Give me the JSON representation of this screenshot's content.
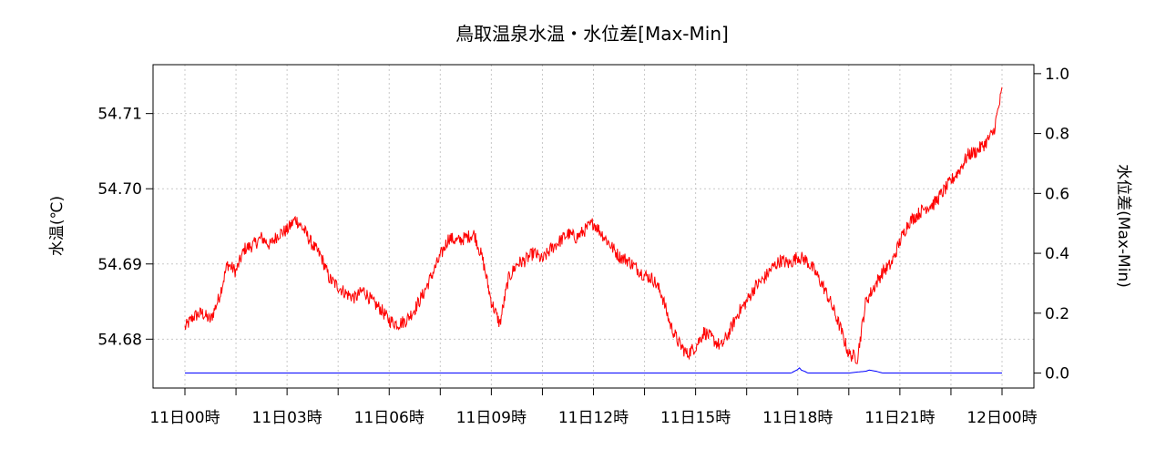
{
  "chart_data": {
    "type": "line",
    "title": "鳥取温泉水温・水位差[Max-Min]",
    "ylabel_left": "水温(℃)",
    "ylabel_right": "水位差(Max-Min)",
    "x_ticks": [
      "11日00時",
      "11日03時",
      "11日06時",
      "11日09時",
      "11日12時",
      "11日15時",
      "11日18時",
      "11日21時",
      "12日00時"
    ],
    "x_range_hours": [
      0,
      24
    ],
    "y_left_ticks": [
      "54.68",
      "54.69",
      "54.70",
      "54.71"
    ],
    "y_left_range": [
      54.6735,
      54.7165
    ],
    "y_right_ticks": [
      "0.0",
      "0.2",
      "0.4",
      "0.6",
      "0.8",
      "1.0"
    ],
    "y_right_range": [
      -0.05,
      1.03
    ],
    "grid": true,
    "colors": {
      "temperature": "#ff0000",
      "level_diff": "#0000ff",
      "grid": "#c8c8c8"
    },
    "series": [
      {
        "axis": "left",
        "color": "#ff0000",
        "x": [
          0,
          0.25,
          0.5,
          0.75,
          1.0,
          1.25,
          1.5,
          1.75,
          2.0,
          2.25,
          2.5,
          2.75,
          3.0,
          3.25,
          3.5,
          3.75,
          4.0,
          4.25,
          4.5,
          4.75,
          5.0,
          5.25,
          5.5,
          5.75,
          6.0,
          6.25,
          6.5,
          6.75,
          7.0,
          7.25,
          7.5,
          7.75,
          8.0,
          8.25,
          8.5,
          8.75,
          9.0,
          9.25,
          9.5,
          9.75,
          10.0,
          10.25,
          10.5,
          10.75,
          11.0,
          11.25,
          11.5,
          11.75,
          12.0,
          12.25,
          12.5,
          12.75,
          13.0,
          13.25,
          13.5,
          13.75,
          14.0,
          14.25,
          14.5,
          14.75,
          15.0,
          15.25,
          15.5,
          15.75,
          16.0,
          16.25,
          16.5,
          16.75,
          17.0,
          17.25,
          17.5,
          17.75,
          18.0,
          18.25,
          18.5,
          18.75,
          19.0,
          19.25,
          19.5,
          19.75,
          20.0,
          20.25,
          20.5,
          20.75,
          21.0,
          21.25,
          21.5,
          21.75,
          22.0,
          22.25,
          22.5,
          22.75,
          23.0,
          23.25,
          23.5,
          23.75,
          24.0
        ],
        "values": [
          54.6815,
          54.683,
          54.6835,
          54.6825,
          54.6855,
          54.69,
          54.689,
          54.692,
          54.6925,
          54.6935,
          54.6925,
          54.694,
          54.6945,
          54.696,
          54.6945,
          54.6925,
          54.691,
          54.688,
          54.687,
          54.686,
          54.6855,
          54.6865,
          54.685,
          54.684,
          54.6825,
          54.682,
          54.6825,
          54.684,
          54.686,
          54.6885,
          54.691,
          54.6935,
          54.693,
          54.6935,
          54.694,
          54.6905,
          54.685,
          54.682,
          54.688,
          54.69,
          54.6905,
          54.6915,
          54.6905,
          54.692,
          54.693,
          54.694,
          54.6935,
          54.6945,
          54.6955,
          54.694,
          54.6925,
          54.691,
          54.6905,
          54.6895,
          54.6885,
          54.688,
          54.686,
          54.682,
          54.6795,
          54.678,
          54.679,
          54.681,
          54.68,
          54.679,
          54.681,
          54.6835,
          54.685,
          54.687,
          54.688,
          54.6895,
          54.6905,
          54.69,
          54.691,
          54.6905,
          54.689,
          54.687,
          54.6845,
          54.6815,
          54.678,
          54.6775,
          54.685,
          54.687,
          54.689,
          54.69,
          54.693,
          54.6955,
          54.6965,
          54.6975,
          54.698,
          54.6995,
          54.701,
          54.7025,
          54.7045,
          54.705,
          54.706,
          54.7075,
          54.713
        ]
      },
      {
        "axis": "right",
        "color": "#0000ff",
        "x": [
          0,
          17.8,
          17.9,
          18.0,
          18.05,
          18.1,
          18.2,
          18.3,
          19.5,
          19.8,
          20.0,
          20.1,
          20.3,
          20.5,
          21.0,
          24.0
        ],
        "values": [
          0.0,
          0.0,
          0.006,
          0.012,
          0.018,
          0.01,
          0.006,
          0.0,
          0.0,
          0.004,
          0.006,
          0.01,
          0.006,
          0.0,
          0.0,
          0.0
        ]
      }
    ]
  }
}
